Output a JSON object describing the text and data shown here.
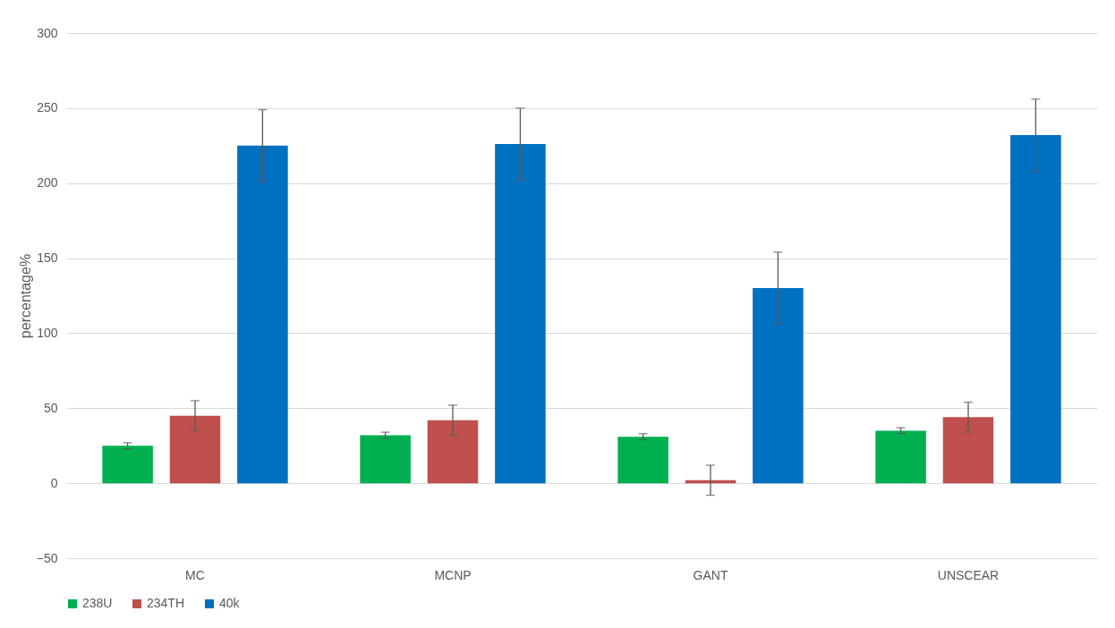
{
  "chart_data": {
    "type": "bar",
    "ylabel": "percentage%",
    "categories": [
      "MC",
      "MCNP",
      "GANT",
      "UNSCEAR"
    ],
    "series": [
      {
        "name": "238U",
        "color": "#00b050",
        "values": [
          25,
          32,
          31,
          35
        ],
        "errors": [
          2,
          2,
          2,
          2
        ]
      },
      {
        "name": "234TH",
        "color": "#c0504d",
        "values": [
          45,
          42,
          2,
          44
        ],
        "errors": [
          10,
          10,
          10,
          10
        ]
      },
      {
        "name": "40k",
        "color": "#0070c0",
        "values": [
          225,
          226,
          130,
          232
        ],
        "errors": [
          24,
          24,
          24,
          24
        ]
      }
    ],
    "ylim": [
      -50,
      300
    ],
    "yticks": [
      -50,
      0,
      50,
      100,
      150,
      200,
      250,
      300
    ],
    "grid": "y",
    "legend": "bottom"
  }
}
